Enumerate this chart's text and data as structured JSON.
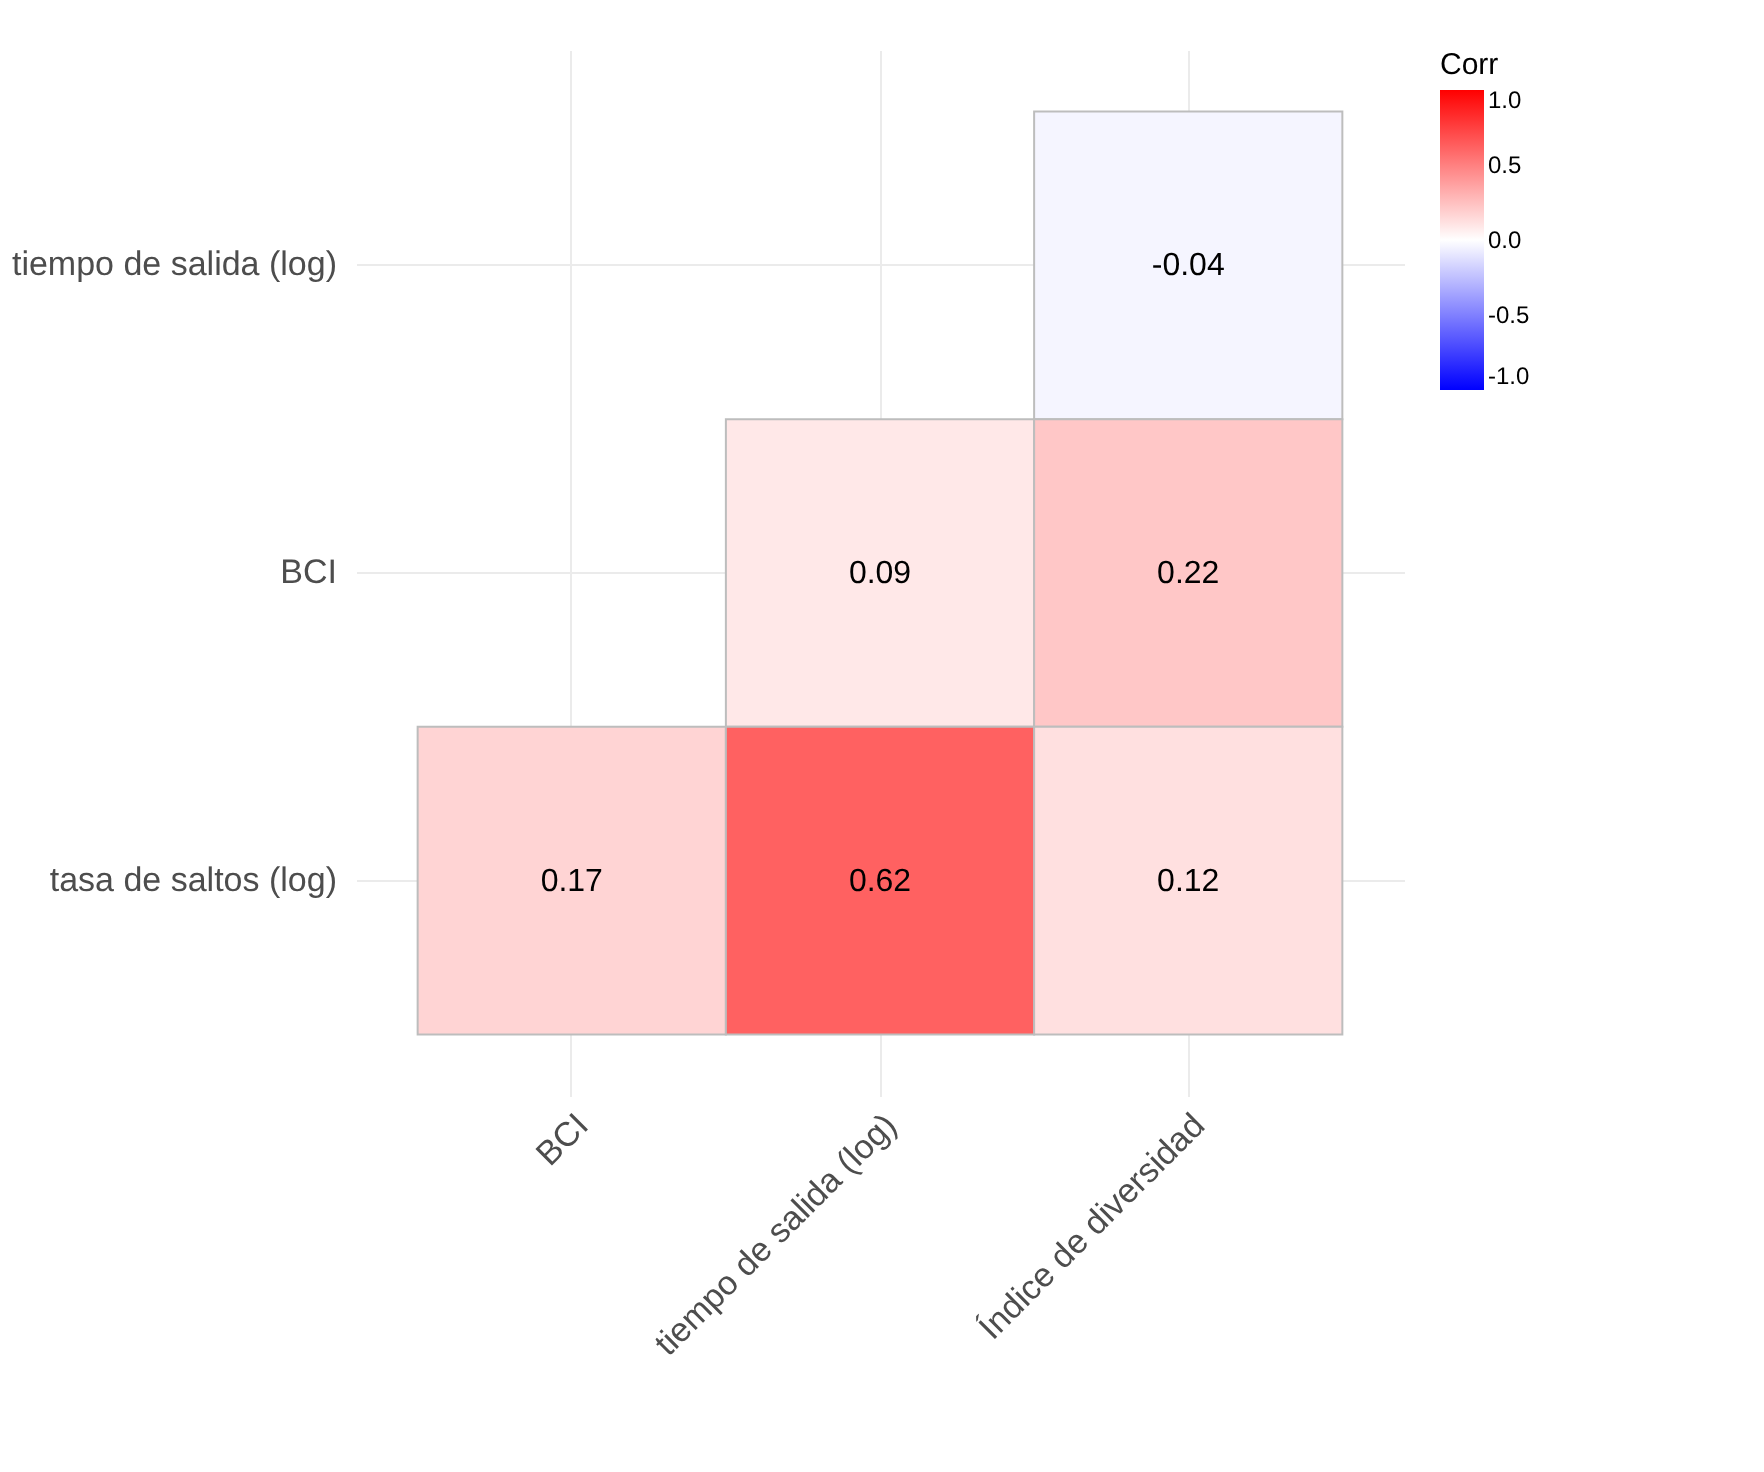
{
  "chart_data": {
    "type": "heatmap",
    "categories": [
      "BCI",
      "tiempo de salida (log)",
      "Índice de diversidad"
    ],
    "y_categories": [
      "tiempo de salida (log)",
      "BCI",
      "tasa de saltos (log)"
    ],
    "cells": [
      [
        null,
        null,
        -0.04
      ],
      [
        null,
        0.09,
        0.22
      ],
      [
        0.17,
        0.62,
        0.12
      ]
    ],
    "data_labels": true,
    "legend_title": "Corr",
    "grid": true,
    "clim": [
      -1,
      1
    ],
    "cticks": [
      {
        "value": -1,
        "label": "-1.0"
      },
      {
        "value": -0.5,
        "label": "-0.5"
      },
      {
        "value": 0,
        "label": "0.0"
      },
      {
        "value": 0.5,
        "label": "0.5"
      },
      {
        "value": 1,
        "label": "1.0"
      }
    ]
  }
}
